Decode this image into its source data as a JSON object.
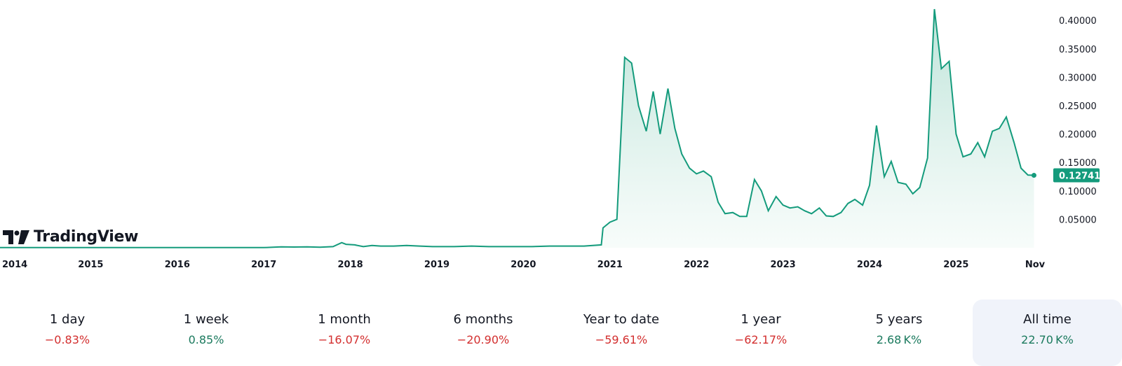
{
  "brand": {
    "name": "TradingView"
  },
  "colors": {
    "line": "#149b7c",
    "fill_top": "#b5e0d4",
    "fill_bottom": "#f2faf7",
    "positive": "#1b7a5e",
    "negative": "#d32f2f",
    "active_bg": "#f0f3fa"
  },
  "chart_data": {
    "type": "area",
    "x_tick_labels": [
      "2014",
      "2015",
      "2016",
      "2017",
      "2018",
      "2019",
      "2020",
      "2021",
      "2022",
      "2023",
      "2024",
      "2025",
      "Nov"
    ],
    "y_tick_labels": [
      "0.05000",
      "0.10000",
      "0.15000",
      "0.20000",
      "0.25000",
      "0.30000",
      "0.35000",
      "0.40000"
    ],
    "ylim": [
      0,
      0.42
    ],
    "last_value": 0.12741,
    "last_value_label": "0.12741",
    "grid": false,
    "x": [
      2013.9,
      2014.2,
      2014.5,
      2015,
      2015.5,
      2016,
      2016.5,
      2017,
      2017.2,
      2017.35,
      2017.5,
      2017.65,
      2017.8,
      2017.9,
      2017.95,
      2018.05,
      2018.15,
      2018.25,
      2018.35,
      2018.5,
      2018.65,
      2018.8,
      2018.95,
      2019.2,
      2019.4,
      2019.6,
      2019.9,
      2020.1,
      2020.3,
      2020.5,
      2020.7,
      2020.9,
      2020.92,
      2021.0,
      2021.08,
      2021.17,
      2021.25,
      2021.33,
      2021.42,
      2021.5,
      2021.58,
      2021.67,
      2021.75,
      2021.83,
      2021.92,
      2022.0,
      2022.08,
      2022.17,
      2022.25,
      2022.33,
      2022.42,
      2022.5,
      2022.58,
      2022.67,
      2022.75,
      2022.83,
      2022.92,
      2023.0,
      2023.08,
      2023.17,
      2023.25,
      2023.33,
      2023.42,
      2023.5,
      2023.58,
      2023.67,
      2023.75,
      2023.83,
      2023.92,
      2024.0,
      2024.08,
      2024.17,
      2024.25,
      2024.33,
      2024.42,
      2024.5,
      2024.58,
      2024.67,
      2024.75,
      2024.83,
      2024.92,
      2025.0,
      2025.08,
      2025.17,
      2025.25,
      2025.33,
      2025.42,
      2025.5,
      2025.58,
      2025.67,
      2025.75,
      2025.83,
      2025.9
    ],
    "values": [
      0.0003,
      0.0002,
      0.0002,
      0.0002,
      0.0002,
      0.0002,
      0.0002,
      0.0002,
      0.0015,
      0.0012,
      0.0015,
      0.001,
      0.002,
      0.009,
      0.006,
      0.005,
      0.002,
      0.004,
      0.003,
      0.003,
      0.004,
      0.003,
      0.002,
      0.002,
      0.003,
      0.002,
      0.002,
      0.002,
      0.003,
      0.003,
      0.003,
      0.005,
      0.035,
      0.045,
      0.05,
      0.335,
      0.325,
      0.25,
      0.205,
      0.275,
      0.2,
      0.28,
      0.21,
      0.165,
      0.14,
      0.13,
      0.135,
      0.125,
      0.08,
      0.06,
      0.062,
      0.055,
      0.055,
      0.12,
      0.1,
      0.065,
      0.09,
      0.075,
      0.07,
      0.072,
      0.065,
      0.06,
      0.07,
      0.056,
      0.055,
      0.062,
      0.078,
      0.085,
      0.075,
      0.11,
      0.215,
      0.125,
      0.152,
      0.115,
      0.112,
      0.095,
      0.106,
      0.158,
      0.42,
      0.315,
      0.328,
      0.2,
      0.16,
      0.165,
      0.185,
      0.16,
      0.205,
      0.21,
      0.23,
      0.185,
      0.14,
      0.128,
      0.12741
    ]
  },
  "periods": [
    {
      "label": "1 day",
      "value": "−0.83%",
      "trend": "neg"
    },
    {
      "label": "1 week",
      "value": "0.85%",
      "trend": "pos"
    },
    {
      "label": "1 month",
      "value": "−16.07%",
      "trend": "neg"
    },
    {
      "label": "6 months",
      "value": "−20.90%",
      "trend": "neg"
    },
    {
      "label": "Year to date",
      "value": "−59.61%",
      "trend": "neg"
    },
    {
      "label": "1 year",
      "value": "−62.17%",
      "trend": "neg"
    },
    {
      "label": "5 years",
      "value": "2.68 K%",
      "trend": "pos"
    },
    {
      "label": "All time",
      "value": "22.70 K%",
      "trend": "pos",
      "active": true
    }
  ]
}
